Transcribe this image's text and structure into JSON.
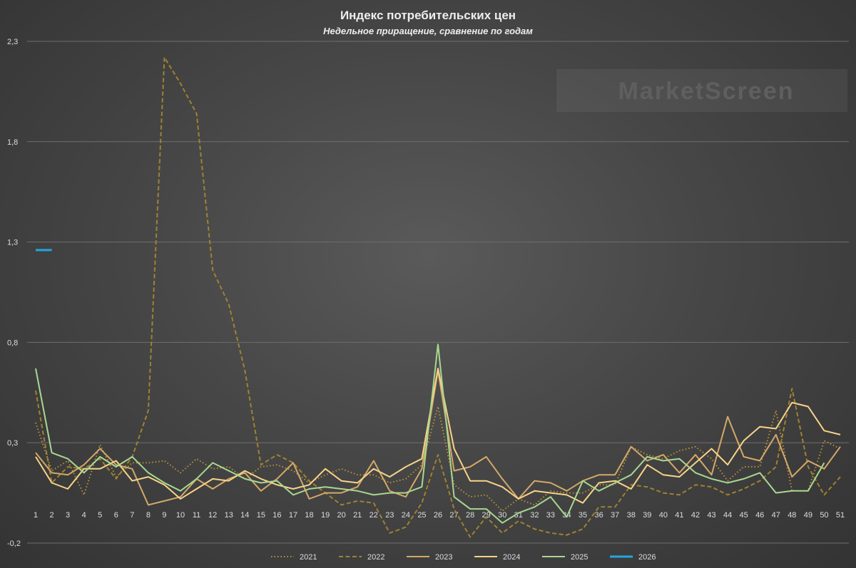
{
  "chart_data": {
    "type": "line",
    "title": "Индекс потребительских цен",
    "subtitle": "Недельное приращение, сравнение по годам",
    "watermark": "MarketScreen",
    "ylim": [
      -0.2,
      2.3
    ],
    "yticks": [
      "2,3",
      "1,8",
      "1,3",
      "0,8",
      "0,3",
      "-0,2"
    ],
    "ytick_values": [
      2.3,
      1.8,
      1.3,
      0.8,
      0.3,
      -0.2
    ],
    "grid": "horizontal",
    "legend_position": "bottom",
    "categories": [
      "1",
      "2",
      "3",
      "4",
      "5",
      "6",
      "7",
      "8",
      "9",
      "10",
      "11",
      "12",
      "13",
      "14",
      "15",
      "16",
      "17",
      "18",
      "19",
      "20",
      "21",
      "22",
      "23",
      "24",
      "25",
      "26",
      "27",
      "28",
      "29",
      "30",
      "31",
      "32",
      "33",
      "34",
      "35",
      "36",
      "37",
      "38",
      "39",
      "40",
      "41",
      "42",
      "43",
      "44",
      "45",
      "46",
      "47",
      "48",
      "49",
      "50",
      "51"
    ],
    "series": [
      {
        "name": "2021",
        "color": "#b8923a",
        "dash": "dotted",
        "values": [
          0.4,
          0.16,
          0.21,
          0.04,
          0.29,
          0.13,
          0.2,
          0.2,
          0.21,
          0.15,
          0.22,
          0.17,
          0.18,
          0.12,
          0.18,
          0.19,
          0.16,
          0.1,
          0.14,
          0.17,
          0.14,
          0.14,
          0.1,
          0.12,
          0.19,
          0.48,
          0.09,
          0.03,
          0.04,
          -0.04,
          0.02,
          -0.01,
          0.06,
          0.05,
          0.05,
          0.09,
          0.09,
          0.28,
          0.24,
          0.22,
          0.26,
          0.28,
          0.22,
          0.11,
          0.18,
          0.18,
          0.46,
          0.06,
          0.06,
          0.31,
          0.27
        ]
      },
      {
        "name": "2022",
        "color": "#9e8233",
        "dash": "dashed",
        "values": [
          0.56,
          0.1,
          0.18,
          0.17,
          0.22,
          0.12,
          0.23,
          0.46,
          2.22,
          2.09,
          1.94,
          1.16,
          0.99,
          0.66,
          0.19,
          0.24,
          0.2,
          0.11,
          0.05,
          -0.01,
          0.01,
          0.0,
          -0.15,
          -0.12,
          0.0,
          0.24,
          -0.03,
          -0.17,
          -0.07,
          -0.15,
          -0.09,
          -0.13,
          -0.15,
          -0.16,
          -0.13,
          -0.02,
          -0.02,
          0.09,
          0.08,
          0.05,
          0.04,
          0.09,
          0.08,
          0.04,
          0.07,
          0.11,
          0.18,
          0.57,
          0.18,
          0.04,
          0.13
        ]
      },
      {
        "name": "2023",
        "color": "#d4a868",
        "dash": "solid",
        "values": [
          0.25,
          0.15,
          0.14,
          0.19,
          0.27,
          0.19,
          0.17,
          -0.01,
          0.01,
          0.03,
          0.12,
          0.07,
          0.12,
          0.15,
          0.06,
          0.12,
          0.2,
          0.02,
          0.05,
          0.05,
          0.08,
          0.21,
          0.06,
          0.03,
          0.17,
          0.66,
          0.16,
          0.18,
          0.23,
          0.12,
          0.02,
          0.11,
          0.1,
          0.06,
          0.11,
          0.14,
          0.14,
          0.28,
          0.21,
          0.24,
          0.15,
          0.24,
          0.14,
          0.43,
          0.23,
          0.21,
          0.34,
          0.13,
          0.21,
          0.17,
          0.28
        ]
      },
      {
        "name": "2024",
        "color": "#f7d388",
        "dash": "solid",
        "values": [
          0.23,
          0.1,
          0.07,
          0.17,
          0.17,
          0.21,
          0.11,
          0.13,
          0.09,
          0.02,
          0.07,
          0.12,
          0.11,
          0.16,
          0.12,
          0.09,
          0.07,
          0.09,
          0.17,
          0.11,
          0.1,
          0.17,
          0.13,
          0.18,
          0.22,
          0.67,
          0.27,
          0.11,
          0.11,
          0.08,
          0.02,
          0.06,
          0.05,
          0.04,
          0.0,
          0.1,
          0.11,
          0.07,
          0.19,
          0.14,
          0.13,
          0.2,
          0.27,
          0.19,
          0.31,
          0.38,
          0.37,
          0.5,
          0.48,
          0.36,
          0.34
        ]
      },
      {
        "name": "2025",
        "color": "#a8d890",
        "dash": "solid",
        "values": [
          0.67,
          0.25,
          0.22,
          0.15,
          0.23,
          0.18,
          0.23,
          0.15,
          0.1,
          0.06,
          0.12,
          0.2,
          0.16,
          0.12,
          0.1,
          0.11,
          0.04,
          0.07,
          0.08,
          0.07,
          0.06,
          0.04,
          0.05,
          0.05,
          0.08,
          0.79,
          0.03,
          -0.03,
          -0.03,
          -0.1,
          -0.05,
          -0.02,
          0.03,
          -0.07,
          0.11,
          0.06,
          0.1,
          0.14,
          0.23,
          0.21,
          0.22,
          0.15,
          0.12,
          0.1,
          0.12,
          0.15,
          0.05,
          0.06,
          0.06,
          0.2,
          null
        ]
      },
      {
        "name": "2026",
        "color": "#1fa8e0",
        "dash": "solid",
        "values": [
          1.26,
          1.26,
          null,
          null,
          null,
          null,
          null,
          null,
          null,
          null,
          null,
          null,
          null,
          null,
          null,
          null,
          null,
          null,
          null,
          null,
          null,
          null,
          null,
          null,
          null,
          null,
          null,
          null,
          null,
          null,
          null,
          null,
          null,
          null,
          null,
          null,
          null,
          null,
          null,
          null,
          null,
          null,
          null,
          null,
          null,
          null,
          null,
          null,
          null,
          null,
          null
        ]
      }
    ]
  }
}
